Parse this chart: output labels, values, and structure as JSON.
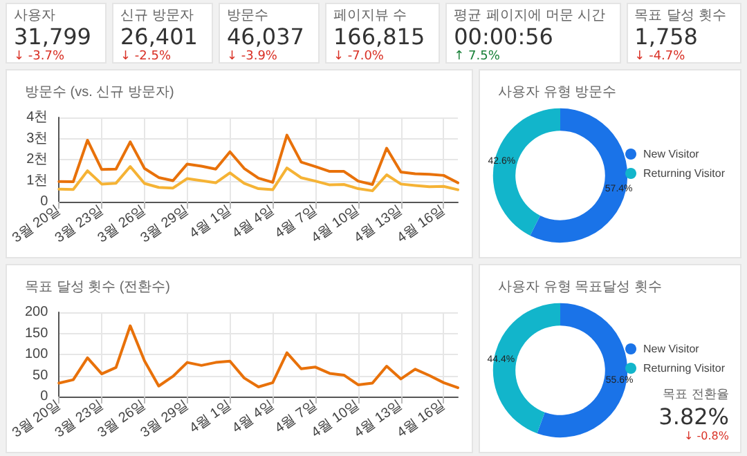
{
  "chart_data": [
    {
      "type": "other",
      "annotations": [
        "사용자",
        "31,799",
        "↓ -3.7%",
        "신규 방문자",
        "26,401",
        "↓ -2.5%",
        "방문수",
        "46,037",
        "↓ -3.9%",
        "페이지뷰 수",
        "166,815",
        "↓ -7.0%",
        "평균 페이지에 머문 시간",
        "00:00:56",
        "↑ 7.5%",
        "목표 달성 횟수",
        "1,758",
        "↓ -4.7%"
      ]
    },
    {
      "type": "line",
      "title": "방문수 (vs. 신규 방문자)",
      "categories": [
        "3월 20일",
        null,
        null,
        "3월 23일",
        null,
        null,
        "3월 26일",
        null,
        null,
        "3월 29일",
        null,
        null,
        "4월 1일",
        null,
        null,
        "4월 4일",
        null,
        null,
        "4월 7일",
        null,
        null,
        "4월 10일",
        null,
        null,
        "4월 13일",
        null,
        null,
        "4월 16일",
        null
      ],
      "series": [
        {
          "color": "#e8710a",
          "values": [
            0.96,
            0.95,
            2.92,
            1.53,
            1.55,
            2.84,
            1.58,
            1.15,
            1.0,
            1.79,
            1.69,
            1.55,
            2.37,
            1.58,
            1.12,
            0.92,
            3.16,
            1.88,
            1.67,
            1.44,
            1.44,
            0.98,
            0.82,
            2.54,
            1.41,
            1.33,
            1.3,
            1.25,
            0.9
          ]
        },
        {
          "color": "#f5b335",
          "values": [
            0.6,
            0.58,
            1.47,
            0.84,
            0.88,
            1.67,
            0.87,
            0.68,
            0.65,
            1.1,
            1.0,
            0.9,
            1.37,
            0.87,
            0.62,
            0.57,
            1.6,
            1.14,
            0.98,
            0.8,
            0.82,
            0.62,
            0.52,
            1.28,
            0.84,
            0.77,
            0.71,
            0.73,
            0.57
          ]
        }
      ],
      "ylim": [
        0,
        4
      ],
      "yticks": [
        0,
        {
          "value": 1,
          "label": "1천"
        },
        {
          "value": 2,
          "label": "2천"
        },
        {
          "value": 3,
          "label": "3천"
        },
        {
          "value": 4,
          "label": "4천"
        }
      ],
      "grid": true,
      "marker": "none"
    },
    {
      "type": "donut",
      "title": "사용자 유형 방문수",
      "categories": [
        "New Visitor",
        "Returning Visitor"
      ],
      "values": [
        57.4,
        42.6
      ],
      "colors": [
        "#1a73e8",
        "#12b5cb"
      ],
      "value_labels": [
        "57.4%",
        "42.6%"
      ],
      "legend": "right"
    },
    {
      "type": "line",
      "title": "목표 달성 횟수 (전환수)",
      "categories": [
        "3월 20일",
        null,
        null,
        "3월 23일",
        null,
        null,
        "3월 26일",
        null,
        null,
        "3월 29일",
        null,
        null,
        "4월 1일",
        null,
        null,
        "4월 4일",
        null,
        null,
        "4월 7일",
        null,
        null,
        "4월 10일",
        null,
        null,
        "4월 13일",
        null,
        null,
        "4월 16일",
        null
      ],
      "series": [
        {
          "color": "#e8710a",
          "values": [
            32,
            40,
            92,
            54,
            69,
            168,
            85,
            25,
            48,
            81,
            74,
            81,
            84,
            44,
            23,
            33,
            104,
            66,
            70,
            55,
            51,
            28,
            32,
            72,
            42,
            65,
            50,
            33,
            21
          ]
        }
      ],
      "ylim": [
        0,
        200
      ],
      "yticks": [
        0,
        50,
        100,
        150,
        200
      ],
      "grid": true,
      "marker": "none"
    },
    {
      "type": "donut",
      "title": "사용자 유형 목표달성 횟수",
      "categories": [
        "New Visitor",
        "Returning Visitor"
      ],
      "values": [
        55.6,
        44.4
      ],
      "colors": [
        "#1a73e8",
        "#12b5cb"
      ],
      "value_labels": [
        "55.6%",
        "44.4%"
      ],
      "legend": "right",
      "annotations": [
        "목표 전환율",
        "3.82%",
        "↓ -0.8%"
      ]
    }
  ]
}
